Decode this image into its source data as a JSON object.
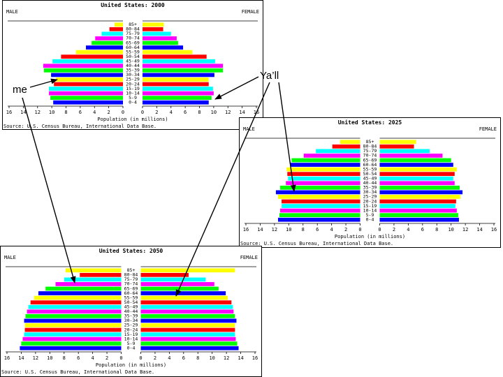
{
  "annotations": {
    "me_label": "me",
    "yall_label": "Ya’ll"
  },
  "chart_data": [
    {
      "type": "population-pyramid",
      "title": "United States: 2000",
      "left_label": "MALE",
      "right_label": "FEMALE",
      "xlabel": "Population (in millions)",
      "source": "Source: U.S. Census Bureau, International Data Base.",
      "x_ticks": [
        "16",
        "14",
        "12",
        "10",
        "8",
        "6",
        "4",
        "2",
        "0",
        "0",
        "2",
        "4",
        "6",
        "8",
        "10",
        "12",
        "14",
        "16"
      ],
      "xlim": [
        0,
        16
      ],
      "age_groups": [
        "0-4",
        "5-9",
        "10-14",
        "15-19",
        "20-24",
        "25-29",
        "30-34",
        "35-39",
        "40-44",
        "45-49",
        "50-54",
        "55-59",
        "60-64",
        "65-69",
        "70-74",
        "75-79",
        "80-84",
        "85+"
      ],
      "male": [
        9.8,
        10.2,
        10.4,
        10.4,
        9.7,
        9.4,
        10.1,
        11.1,
        11.2,
        9.9,
        8.7,
        6.6,
        5.2,
        4.4,
        3.9,
        3.0,
        1.9,
        1.2
      ],
      "female": [
        9.3,
        9.7,
        10.0,
        9.9,
        9.3,
        9.3,
        10.1,
        11.3,
        11.3,
        10.2,
        9.0,
        7.0,
        5.7,
        5.0,
        4.8,
        4.0,
        2.9,
        3.0
      ]
    },
    {
      "type": "population-pyramid",
      "title": "United States: 2025",
      "left_label": "MALE",
      "right_label": "FEMALE",
      "xlabel": "Population (in millions)",
      "source": "Source: U.S. Census Bureau, International Data Base.",
      "x_ticks": [
        "16",
        "14",
        "12",
        "10",
        "8",
        "6",
        "4",
        "2",
        "0",
        "0",
        "2",
        "4",
        "6",
        "8",
        "10",
        "12",
        "14",
        "16"
      ],
      "xlim": [
        0,
        16
      ],
      "age_groups": [
        "0-4",
        "5-9",
        "10-14",
        "15-19",
        "20-24",
        "25-29",
        "30-34",
        "35-39",
        "40-44",
        "45-49",
        "50-54",
        "55-59",
        "60-64",
        "65-69",
        "70-74",
        "75-79",
        "80-84",
        "85+"
      ],
      "male": [
        11.5,
        11.3,
        11.2,
        11.0,
        11.0,
        11.5,
        11.8,
        11.2,
        10.4,
        10.1,
        10.2,
        10.3,
        9.8,
        9.6,
        7.9,
        6.2,
        3.9,
        2.8
      ],
      "female": [
        11.1,
        11.0,
        10.8,
        10.6,
        10.7,
        11.3,
        11.6,
        11.2,
        10.5,
        10.3,
        10.5,
        10.8,
        10.3,
        10.0,
        8.8,
        7.0,
        4.8,
        5.1
      ]
    },
    {
      "type": "population-pyramid",
      "title": "United States: 2050",
      "left_label": "MALE",
      "right_label": "FEMALE",
      "xlabel": "Population (in millions)",
      "source": "Source: U.S. Census Bureau, International Data Base.",
      "x_ticks": [
        "16",
        "14",
        "12",
        "10",
        "8",
        "6",
        "4",
        "2",
        "0",
        "0",
        "2",
        "4",
        "6",
        "8",
        "10",
        "12",
        "14",
        "16"
      ],
      "xlim": [
        0,
        16
      ],
      "age_groups": [
        "0-4",
        "5-9",
        "10-14",
        "15-19",
        "20-24",
        "25-29",
        "30-34",
        "35-39",
        "40-44",
        "45-49",
        "50-54",
        "55-59",
        "60-64",
        "65-69",
        "70-74",
        "75-79",
        "80-84",
        "85+"
      ],
      "male": [
        14.2,
        14.0,
        13.8,
        13.6,
        13.5,
        13.5,
        13.6,
        13.4,
        13.2,
        13.0,
        12.7,
        12.2,
        11.6,
        10.6,
        9.2,
        8.0,
        5.8,
        7.8
      ],
      "female": [
        13.7,
        13.5,
        13.3,
        13.2,
        13.2,
        13.2,
        13.4,
        13.2,
        13.0,
        12.9,
        12.7,
        12.2,
        11.9,
        10.9,
        10.3,
        9.1,
        6.7,
        13.2
      ]
    }
  ]
}
